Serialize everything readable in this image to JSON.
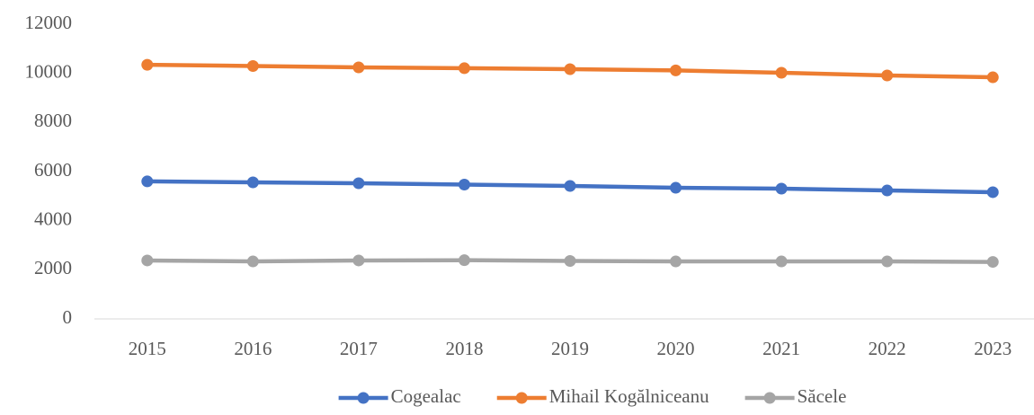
{
  "chart_data": {
    "type": "line",
    "categories": [
      "2015",
      "2016",
      "2017",
      "2018",
      "2019",
      "2020",
      "2021",
      "2022",
      "2023"
    ],
    "series": [
      {
        "name": "Cogealac",
        "color": "#4472c4",
        "values": [
          5600,
          5560,
          5525,
          5470,
          5415,
          5340,
          5305,
          5230,
          5160
        ]
      },
      {
        "name": "Mihail Kogălniceanu",
        "color": "#ed7d31",
        "values": [
          10350,
          10300,
          10245,
          10210,
          10170,
          10120,
          10025,
          9915,
          9840
        ]
      },
      {
        "name": "Săcele",
        "color": "#a5a5a5",
        "values": [
          2380,
          2340,
          2380,
          2390,
          2360,
          2340,
          2340,
          2340,
          2320
        ]
      }
    ],
    "ylim": [
      0,
      12000
    ],
    "yticks": [
      0,
      2000,
      4000,
      6000,
      8000,
      10000,
      12000
    ],
    "grid": false,
    "legend": "bottom"
  }
}
